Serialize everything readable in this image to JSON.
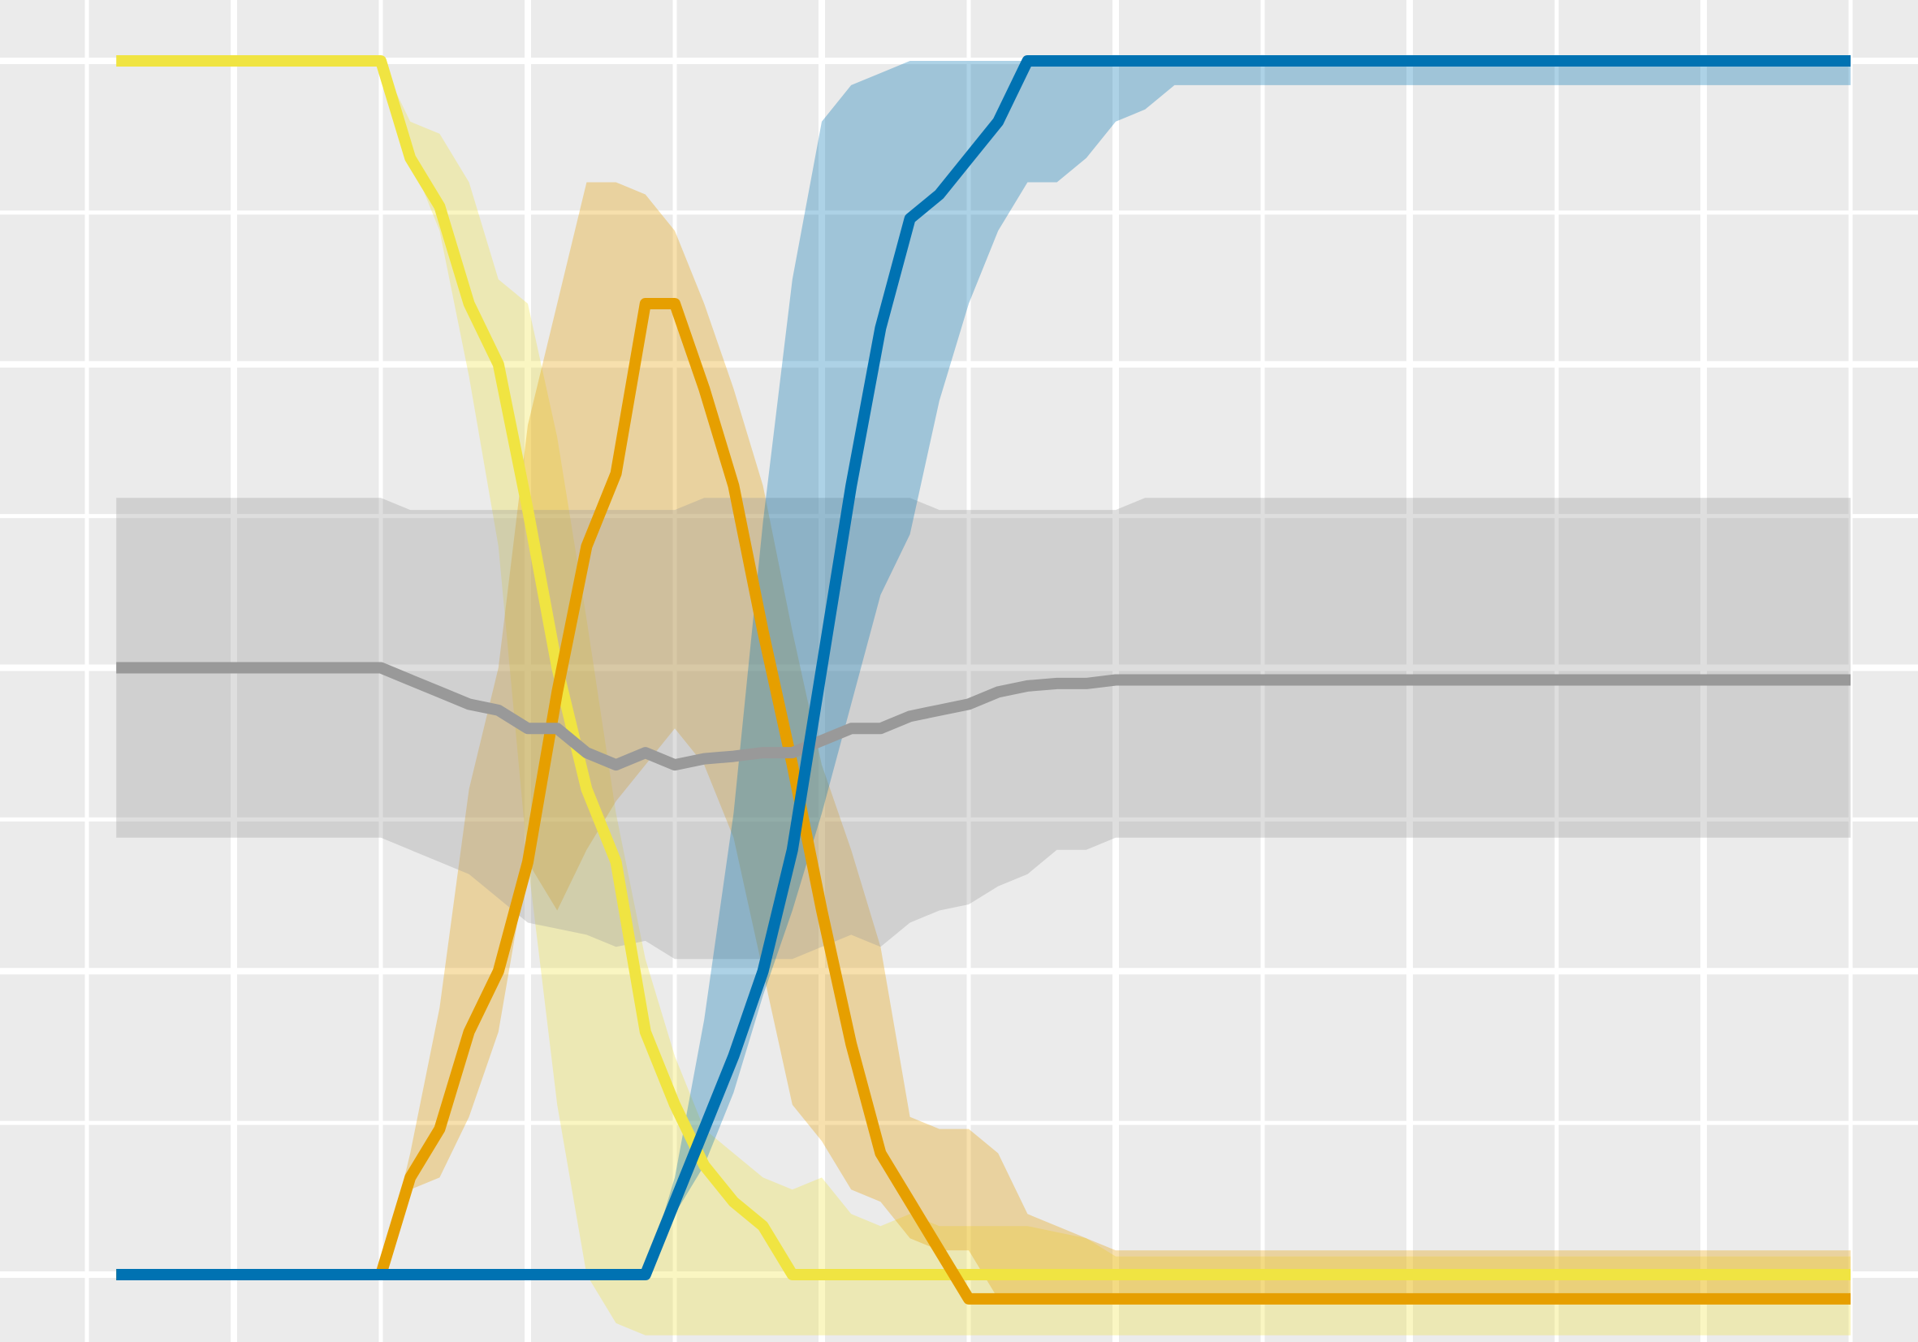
{
  "chart_data": {
    "type": "line",
    "title": "",
    "xlabel": "",
    "ylabel": "",
    "xlim": [
      -0.5,
      6.0
    ],
    "ylim": [
      -0.02,
      1.0
    ],
    "x_grid_major": [
      0,
      1,
      2,
      3,
      4,
      5,
      6
    ],
    "x_grid_minor": [
      -0.5,
      0.5,
      1.5,
      2.5,
      3.5,
      4.5,
      5.5
    ],
    "y_grid_major": [
      0.0,
      0.25,
      0.5,
      0.75,
      1.0
    ],
    "y_grid_minor": [
      0.125,
      0.375,
      0.625,
      0.875
    ],
    "grid": true,
    "legend": "none",
    "x": [
      -0.4,
      0.5,
      0.6,
      0.7,
      0.8,
      0.9,
      1.0,
      1.1,
      1.2,
      1.3,
      1.4,
      1.5,
      1.6,
      1.7,
      1.8,
      1.9,
      2.0,
      2.1,
      2.2,
      2.3,
      2.4,
      2.5,
      2.6,
      2.7,
      2.8,
      2.9,
      3.0,
      3.1,
      3.2,
      3.3,
      3.4,
      3.5,
      5.5
    ],
    "series": [
      {
        "color": "#f0e442",
        "values": [
          1.0,
          1.0,
          0.92,
          0.88,
          0.8,
          0.75,
          0.63,
          0.5,
          0.4,
          0.34,
          0.2,
          0.14,
          0.09,
          0.06,
          0.04,
          0.0,
          0.0,
          0.0,
          0.0,
          0.0,
          0.0,
          0.0,
          0.0,
          0.0,
          0.0,
          0.0,
          0.0,
          0.0,
          0.0,
          0.0,
          0.0,
          0.0,
          0.0
        ],
        "lower": [
          1.0,
          1.0,
          0.92,
          0.86,
          0.74,
          0.6,
          0.34,
          0.14,
          0.0,
          -0.04,
          -0.05,
          -0.05,
          -0.05,
          -0.05,
          -0.05,
          -0.05,
          -0.05,
          -0.05,
          -0.05,
          -0.05,
          -0.05,
          -0.05,
          -0.05,
          -0.05,
          -0.05,
          -0.05,
          -0.05,
          -0.05,
          -0.05,
          -0.05,
          -0.05,
          -0.05,
          -0.05
        ],
        "upper": [
          1.0,
          1.0,
          0.95,
          0.94,
          0.9,
          0.82,
          0.8,
          0.69,
          0.54,
          0.38,
          0.26,
          0.18,
          0.12,
          0.1,
          0.08,
          0.07,
          0.08,
          0.05,
          0.04,
          0.05,
          0.04,
          0.04,
          0.04,
          0.04,
          0.035,
          0.03,
          0.015,
          0.015,
          0.015,
          0.015,
          0.015,
          0.015,
          0.015
        ]
      },
      {
        "color": "#e69f00",
        "values": [
          0.0,
          0.0,
          0.08,
          0.12,
          0.2,
          0.25,
          0.34,
          0.48,
          0.6,
          0.66,
          0.8,
          0.8,
          0.73,
          0.65,
          0.53,
          0.42,
          0.3,
          0.19,
          0.1,
          0.06,
          0.02,
          -0.02,
          -0.02,
          -0.02,
          -0.02,
          -0.02,
          -0.02,
          -0.02,
          -0.02,
          -0.02,
          -0.02,
          -0.02,
          -0.02
        ],
        "lower": [
          0.0,
          0.0,
          0.07,
          0.08,
          0.13,
          0.2,
          0.34,
          0.3,
          0.35,
          0.39,
          0.42,
          0.45,
          0.42,
          0.36,
          0.25,
          0.14,
          0.11,
          0.07,
          0.06,
          0.03,
          0.02,
          0.02,
          -0.02,
          -0.02,
          -0.02,
          -0.02,
          -0.02,
          -0.02,
          -0.02,
          -0.02,
          -0.02,
          -0.02,
          -0.02
        ],
        "upper": [
          0.0,
          0.0,
          0.1,
          0.22,
          0.4,
          0.5,
          0.7,
          0.8,
          0.9,
          0.9,
          0.89,
          0.86,
          0.8,
          0.73,
          0.65,
          0.53,
          0.42,
          0.35,
          0.27,
          0.13,
          0.12,
          0.12,
          0.1,
          0.05,
          0.04,
          0.03,
          0.02,
          0.02,
          0.02,
          0.02,
          0.02,
          0.02,
          0.02
        ]
      },
      {
        "color": "#999999",
        "values": [
          0.5,
          0.5,
          0.49,
          0.48,
          0.47,
          0.465,
          0.45,
          0.45,
          0.43,
          0.42,
          0.43,
          0.42,
          0.425,
          0.427,
          0.43,
          0.43,
          0.44,
          0.45,
          0.45,
          0.46,
          0.465,
          0.47,
          0.48,
          0.485,
          0.487,
          0.487,
          0.49,
          0.49,
          0.49,
          0.49,
          0.49,
          0.49,
          0.49
        ],
        "lower": [
          0.36,
          0.36,
          0.35,
          0.34,
          0.33,
          0.31,
          0.29,
          0.285,
          0.28,
          0.27,
          0.275,
          0.26,
          0.26,
          0.26,
          0.26,
          0.26,
          0.27,
          0.28,
          0.27,
          0.29,
          0.3,
          0.305,
          0.32,
          0.33,
          0.35,
          0.35,
          0.36,
          0.36,
          0.36,
          0.36,
          0.36,
          0.36,
          0.36
        ],
        "upper": [
          0.64,
          0.64,
          0.63,
          0.63,
          0.63,
          0.63,
          0.63,
          0.63,
          0.63,
          0.63,
          0.63,
          0.63,
          0.64,
          0.64,
          0.64,
          0.64,
          0.64,
          0.64,
          0.64,
          0.64,
          0.63,
          0.63,
          0.63,
          0.63,
          0.63,
          0.63,
          0.63,
          0.64,
          0.64,
          0.64,
          0.64,
          0.64,
          0.64
        ]
      },
      {
        "color": "#0072b2",
        "values": [
          0.0,
          0.0,
          0.0,
          0.0,
          0.0,
          0.0,
          0.0,
          0.0,
          0.0,
          0.0,
          0.0,
          0.06,
          0.12,
          0.18,
          0.25,
          0.35,
          0.5,
          0.65,
          0.78,
          0.87,
          0.89,
          0.92,
          0.95,
          1.0,
          1.0,
          1.0,
          1.0,
          1.0,
          1.0,
          1.0,
          1.0,
          1.0,
          1.0
        ],
        "lower": [
          0.0,
          0.0,
          0.0,
          0.0,
          0.0,
          0.0,
          0.0,
          0.0,
          0.0,
          0.0,
          0.0,
          0.05,
          0.09,
          0.15,
          0.23,
          0.3,
          0.38,
          0.47,
          0.56,
          0.61,
          0.72,
          0.8,
          0.86,
          0.9,
          0.9,
          0.92,
          0.95,
          0.96,
          0.98,
          0.98,
          0.98,
          0.98,
          0.98
        ],
        "upper": [
          0.0,
          0.0,
          0.0,
          0.0,
          0.0,
          0.0,
          0.0,
          0.0,
          0.0,
          0.0,
          0.0,
          0.08,
          0.21,
          0.38,
          0.62,
          0.82,
          0.95,
          0.98,
          0.99,
          1.0,
          1.0,
          1.0,
          1.0,
          1.0,
          1.0,
          1.0,
          1.0,
          1.0,
          1.0,
          1.0,
          1.0,
          1.0,
          1.0
        ]
      }
    ]
  }
}
